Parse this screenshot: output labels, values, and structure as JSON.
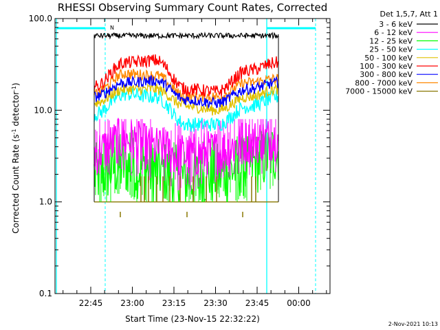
{
  "chart_data": {
    "type": "line",
    "title": "RHESSI Observing Summary Count Rates, Corrected",
    "xlabel": "Start Time (23-Nov-15 22:32:22)",
    "ylabel_main": "Corrected Count Rate (s",
    "ylabel_sup1": "-1",
    "ylabel_mid": " detector",
    "ylabel_sup2": "-1",
    "ylabel_end": ")",
    "y_scale": "log",
    "ylim": [
      0.1,
      100.0
    ],
    "y_ticks": [
      {
        "value": 0.1,
        "label": "0.1"
      },
      {
        "value": 1.0,
        "label": "1.0"
      },
      {
        "value": 10.0,
        "label": "10.0"
      },
      {
        "value": 100.0,
        "label": "100.0"
      }
    ],
    "x_ticks": [
      "22:45",
      "23:00",
      "23:15",
      "23:30",
      "23:45",
      "00:00"
    ],
    "legend_title": "Det 1,5,7, Att 1",
    "legend_placement": "right",
    "grid": false,
    "footer_stamp": "2-Nov-2021 10:13",
    "flag_marker": "N",
    "series": [
      {
        "name": "3 - 6 keV",
        "color": "#000000",
        "level": [
          65,
          65,
          65,
          65,
          65,
          65,
          65
        ]
      },
      {
        "name": "6 - 12 keV",
        "color": "#ff00ff",
        "level": [
          3.5,
          4.8,
          3.8,
          3.2,
          3.5,
          4.5,
          5.0
        ]
      },
      {
        "name": "12 - 25 keV",
        "color": "#00ff00",
        "level": [
          2.0,
          2.5,
          2.2,
          1.8,
          2.0,
          2.5,
          3.5
        ]
      },
      {
        "name": "25 - 50 keV",
        "color": "#00ffff",
        "level": [
          9.0,
          15.0,
          14.0,
          7.0,
          7.0,
          11.0,
          14.0
        ]
      },
      {
        "name": "50 - 100 keV",
        "color": "#e0c000",
        "level": [
          12.0,
          17.0,
          17.0,
          11.0,
          10.0,
          14.0,
          17.0
        ]
      },
      {
        "name": "100 - 300 keV",
        "color": "#ff0000",
        "level": [
          18.0,
          33.0,
          35.0,
          17.0,
          16.0,
          27.0,
          33.0
        ]
      },
      {
        "name": "300 - 800 keV",
        "color": "#0000ff",
        "level": [
          14.0,
          20.0,
          21.0,
          13.0,
          12.0,
          17.0,
          20.0
        ]
      },
      {
        "name": "800 - 7000 keV",
        "color": "#ff8800",
        "level": [
          15.0,
          25.0,
          24.0,
          14.0,
          14.0,
          20.0,
          22.0
        ]
      },
      {
        "name": "7000 - 15000 keV",
        "color": "#887700",
        "level": [
          1.0,
          1.0,
          1.0,
          1.0,
          1.0,
          1.0,
          1.0
        ]
      }
    ]
  }
}
